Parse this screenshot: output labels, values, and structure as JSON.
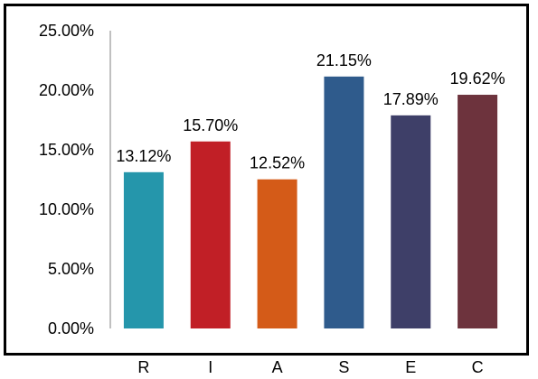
{
  "chart_data": {
    "type": "bar",
    "categories": [
      "R",
      "I",
      "A",
      "S",
      "E",
      "C"
    ],
    "values": [
      13.12,
      15.7,
      12.52,
      21.15,
      17.89,
      19.62
    ],
    "value_labels": [
      "13.12%",
      "15.70%",
      "12.52%",
      "21.15%",
      "17.89%",
      "19.62%"
    ],
    "colors": [
      "#2596ab",
      "#c11f26",
      "#d45b18",
      "#2f5b8c",
      "#3e3f68",
      "#6d333d"
    ],
    "ylim": [
      0,
      25
    ],
    "yticks": [
      0,
      5,
      10,
      15,
      20,
      25
    ],
    "ytick_labels": [
      "0.00%",
      "5.00%",
      "10.00%",
      "15.00%",
      "20.00%",
      "25.00%"
    ],
    "title": "",
    "xlabel": "",
    "ylabel": "",
    "grid": false,
    "legend": "none"
  }
}
